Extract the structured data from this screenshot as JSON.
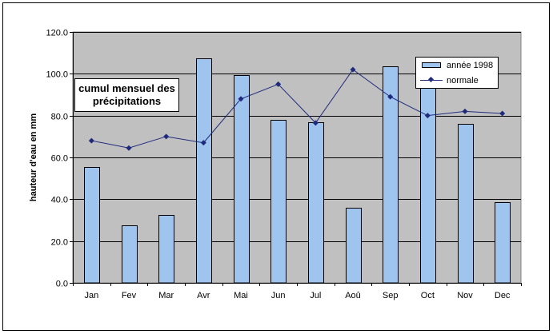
{
  "chart_data": {
    "type": "bar",
    "title_line1": "cumul mensuel des",
    "title_line2": "précipitations",
    "xlabel": "",
    "ylabel": "hauteur d'eau en mm",
    "ylim": [
      0,
      120
    ],
    "ytick_step": 20,
    "yticks": [
      "0.0",
      "20.0",
      "40.0",
      "60.0",
      "80.0",
      "100.0",
      "120.0"
    ],
    "grid": true,
    "legend_position": "top-right",
    "categories": [
      "Jan",
      "Fev",
      "Mar",
      "Avr",
      "Mai",
      "Jun",
      "Jul",
      "Aoû",
      "Sep",
      "Oct",
      "Nov",
      "Dec"
    ],
    "series": [
      {
        "name": "année 1998",
        "kind": "bar",
        "color": "#9fc4ee",
        "values": [
          55.5,
          27.5,
          32.3,
          107.5,
          99.5,
          78.0,
          77.0,
          36.0,
          103.5,
          100.0,
          76.0,
          38.5
        ]
      },
      {
        "name": "normale",
        "kind": "line",
        "marker": "diamond",
        "color": "#1f2a7c",
        "values": [
          68.0,
          64.5,
          70.0,
          67.0,
          88.0,
          95.0,
          76.5,
          102.0,
          89.0,
          80.0,
          82.0,
          81.0
        ]
      }
    ],
    "plot_background": "#c0c0c0"
  }
}
